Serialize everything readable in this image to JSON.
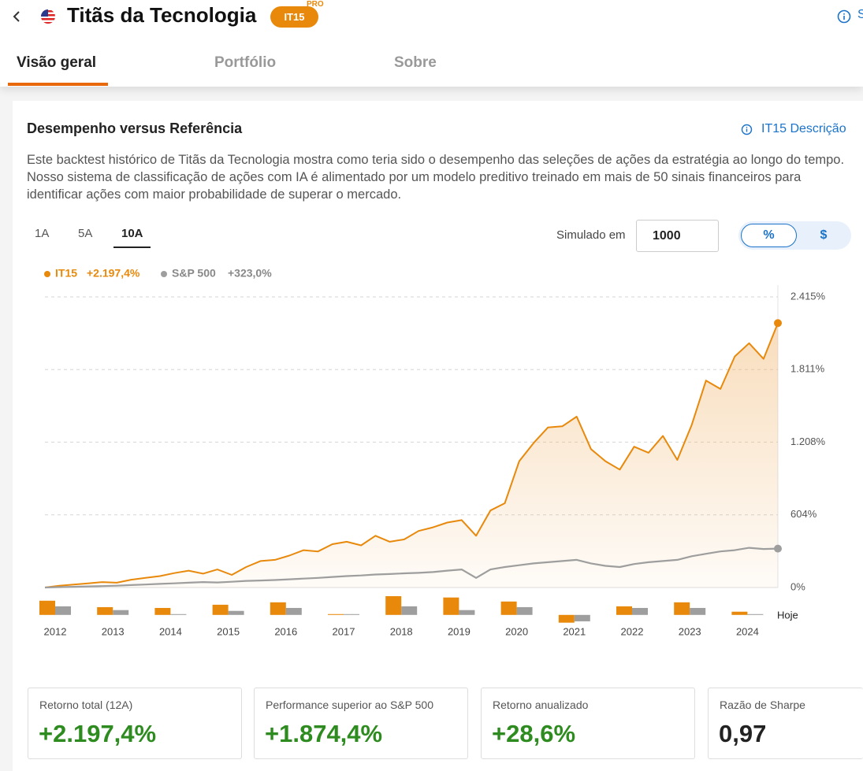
{
  "header": {
    "title": "Titãs da Tecnologia",
    "badge": "IT15",
    "badge_tag": "PRO",
    "right_text": "S"
  },
  "tabs": [
    "Visão geral",
    "Portfólio",
    "Sobre"
  ],
  "card": {
    "title": "Desempenho versus Referência",
    "link": "IT15 Descrição",
    "description": "Este backtest histórico de Titãs da Tecnologia mostra como teria sido o desempenho das seleções de ações da estratégia ao longo do tempo. Nosso sistema de classificação de ações com IA é alimentado por um modelo preditivo treinado em mais de 50 sinais financeiros para identificar ações com maior probabilidade de superar o mercado.",
    "periods": [
      "1A",
      "5A",
      "10A"
    ],
    "simulated_label": "Simulado em",
    "simulated_value": "1000",
    "units": [
      "%",
      "$"
    ]
  },
  "chart_data": [
    {
      "type": "line",
      "series": [
        {
          "name": "IT15",
          "color": "#e8890c",
          "change": "+2.197,4%",
          "values": [
            0,
            15,
            25,
            35,
            45,
            40,
            65,
            80,
            95,
            120,
            140,
            115,
            150,
            105,
            170,
            220,
            230,
            265,
            310,
            300,
            360,
            380,
            350,
            430,
            380,
            400,
            470,
            500,
            540,
            560,
            430,
            640,
            700,
            1050,
            1200,
            1330,
            1340,
            1420,
            1150,
            1050,
            980,
            1170,
            1120,
            1260,
            1060,
            1350,
            1720,
            1650,
            1920,
            2030,
            1900,
            2197.4
          ]
        },
        {
          "name": "S&P 500",
          "color": "#9e9e9e",
          "change": "+323,0%",
          "values": [
            0,
            3,
            6,
            9,
            12,
            15,
            20,
            25,
            30,
            35,
            40,
            45,
            42,
            48,
            55,
            58,
            62,
            68,
            74,
            80,
            88,
            95,
            100,
            108,
            112,
            118,
            122,
            128,
            140,
            150,
            80,
            150,
            170,
            185,
            200,
            210,
            220,
            230,
            200,
            180,
            170,
            195,
            210,
            220,
            230,
            260,
            280,
            300,
            310,
            330,
            320,
            323
          ]
        }
      ],
      "ylim": [
        0,
        2415
      ],
      "yticks": [
        {
          "value": 0,
          "label": "0%"
        },
        {
          "value": 604,
          "label": "604%"
        },
        {
          "value": 1208,
          "label": "1.208%"
        },
        {
          "value": 1811,
          "label": "1.811%"
        },
        {
          "value": 2415,
          "label": "2.415%"
        }
      ],
      "grid": true
    },
    {
      "type": "bar",
      "categories": [
        "2012",
        "2013",
        "2014",
        "2015",
        "2016",
        "2017",
        "2018",
        "2019",
        "2020",
        "2021",
        "2022",
        "2023",
        "2024"
      ],
      "end_label": "Hoje",
      "series": [
        {
          "color": "#e8890c",
          "values": [
            53,
            29,
            26,
            38,
            47,
            3,
            70,
            65,
            50,
            -29,
            32,
            47,
            12
          ]
        },
        {
          "color": "#9e9e9e",
          "values": [
            32,
            18,
            3,
            15,
            26,
            3,
            32,
            18,
            29,
            -24,
            26,
            26,
            3
          ]
        }
      ],
      "ylim": [
        -30,
        70
      ]
    }
  ],
  "stats": [
    {
      "label": "Retorno total (12A)",
      "value": "+2.197,4%"
    },
    {
      "label": "Performance superior ao S&P 500",
      "value": "+1.874,4%"
    },
    {
      "label": "Retorno anualizado",
      "value": "+28,6%"
    },
    {
      "label": "Razão de Sharpe",
      "value": "0,97"
    }
  ]
}
